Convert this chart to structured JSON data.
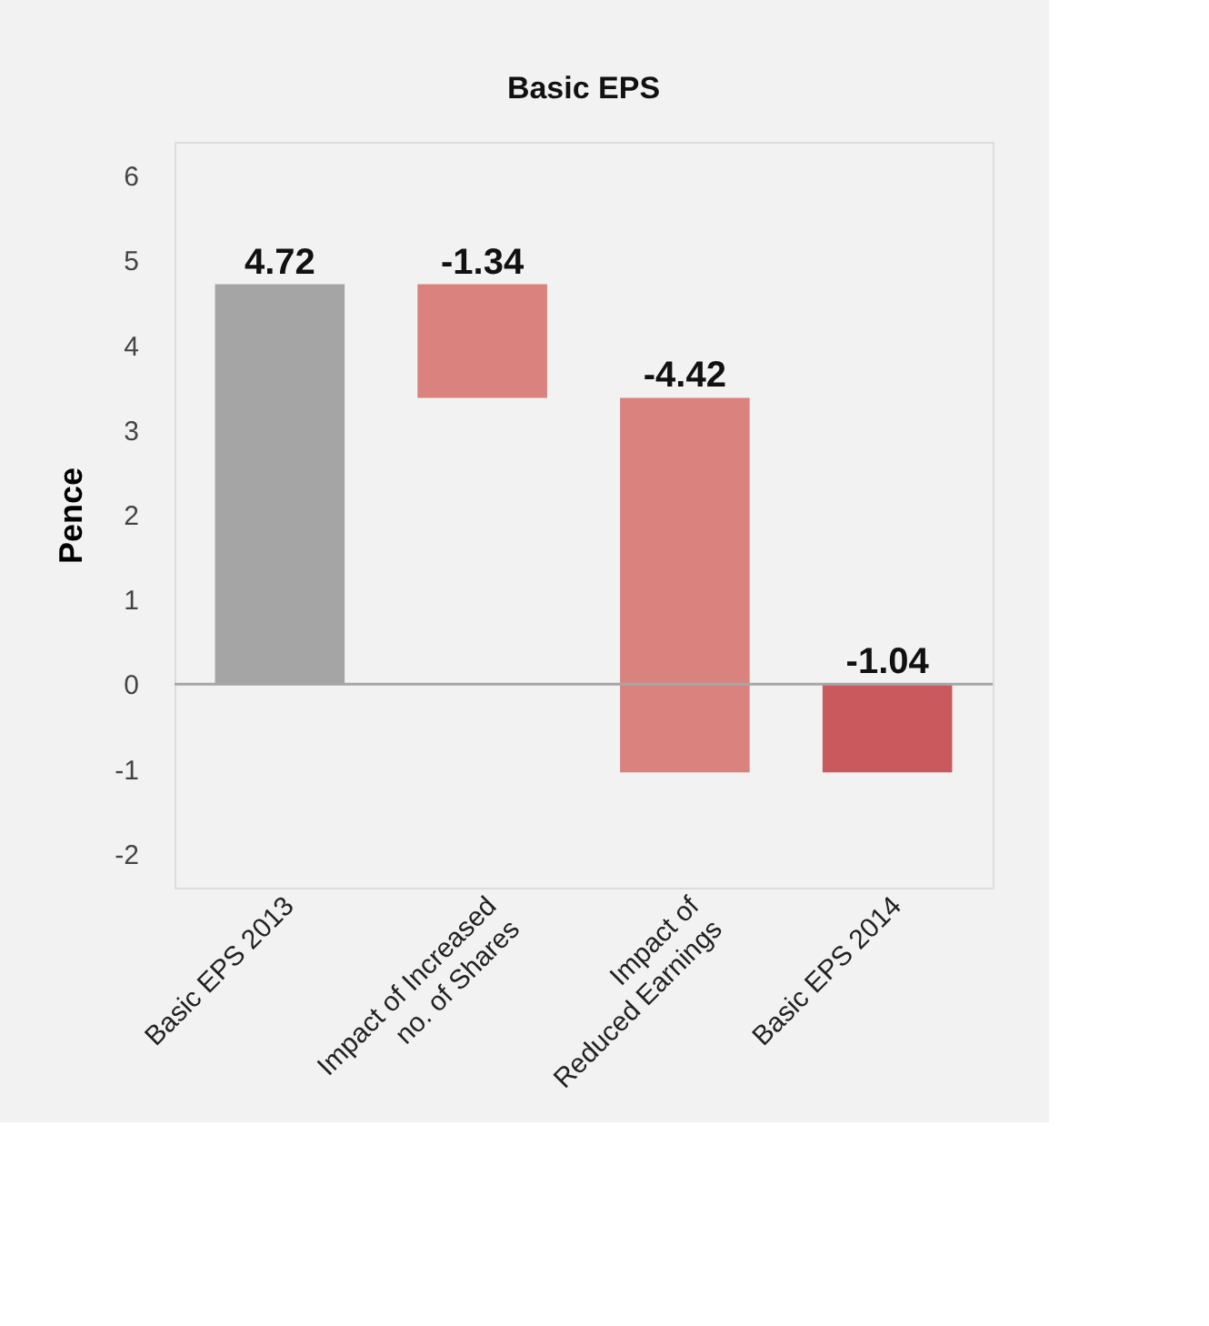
{
  "chart_data": {
    "type": "bar",
    "title": "Basic EPS",
    "ylabel": "Pence",
    "categories": [
      "Basic EPS 2013",
      "Impact of Increased\nno. of Shares",
      "Impact of\nReduced Earnings",
      "Basic EPS 2014"
    ],
    "values": [
      4.72,
      -1.34,
      -4.42,
      -1.04
    ],
    "base": [
      0,
      4.72,
      3.38,
      0
    ],
    "colors": [
      "#a5a5a5",
      "#d9827e",
      "#d9827e",
      "#c9595d"
    ],
    "data_labels": true,
    "ylim": [
      -2.4,
      6.4
    ],
    "yticks": [
      -2,
      -1,
      0,
      1,
      2,
      3,
      4,
      5,
      6
    ],
    "ref_lines": [
      {
        "axis": "y",
        "value": 0,
        "color": "#a6a6a6"
      }
    ],
    "grid": false
  }
}
